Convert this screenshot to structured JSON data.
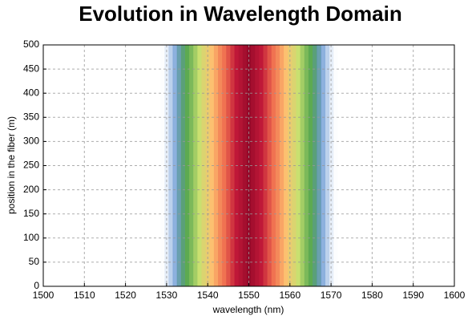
{
  "chart_data": {
    "type": "heatmap",
    "title": "Evolution in Wavelength Domain",
    "xlabel": "wavelength (nm)",
    "ylabel": "position in the fiber (m)",
    "x": [
      1529,
      1530,
      1531,
      1532,
      1533,
      1534,
      1535,
      1536,
      1537,
      1538,
      1539,
      1540,
      1541,
      1542,
      1543,
      1544,
      1545,
      1546,
      1547,
      1548,
      1549,
      1550,
      1551,
      1552,
      1553,
      1554,
      1555,
      1556,
      1557,
      1558,
      1559,
      1560,
      1561,
      1562,
      1563,
      1564,
      1565,
      1566,
      1567,
      1568,
      1569,
      1570,
      1571
    ],
    "values": [
      0,
      0.05,
      0.1,
      0.14,
      0.19,
      0.24,
      0.29,
      0.33,
      0.38,
      0.43,
      0.48,
      0.52,
      0.57,
      0.62,
      0.67,
      0.71,
      0.76,
      0.81,
      0.86,
      0.9,
      0.95,
      1,
      0.95,
      0.9,
      0.86,
      0.81,
      0.76,
      0.71,
      0.67,
      0.62,
      0.57,
      0.52,
      0.48,
      0.43,
      0.38,
      0.33,
      0.29,
      0.24,
      0.19,
      0.14,
      0.1,
      0.05,
      0
    ],
    "colormap": [
      "#e8f0fb",
      "#5b8fd0",
      "#5aa850",
      "#c8e070",
      "#fdc070",
      "#f07050",
      "#c01838",
      "#960a2a"
    ],
    "xlim": [
      1500,
      1600
    ],
    "xticks": [
      1500,
      1510,
      1520,
      1530,
      1540,
      1550,
      1560,
      1570,
      1580,
      1590,
      1600
    ],
    "ylim": [
      0,
      500
    ],
    "yticks": [
      0,
      50,
      100,
      150,
      200,
      250,
      300,
      350,
      400,
      450,
      500
    ],
    "grid": true
  }
}
